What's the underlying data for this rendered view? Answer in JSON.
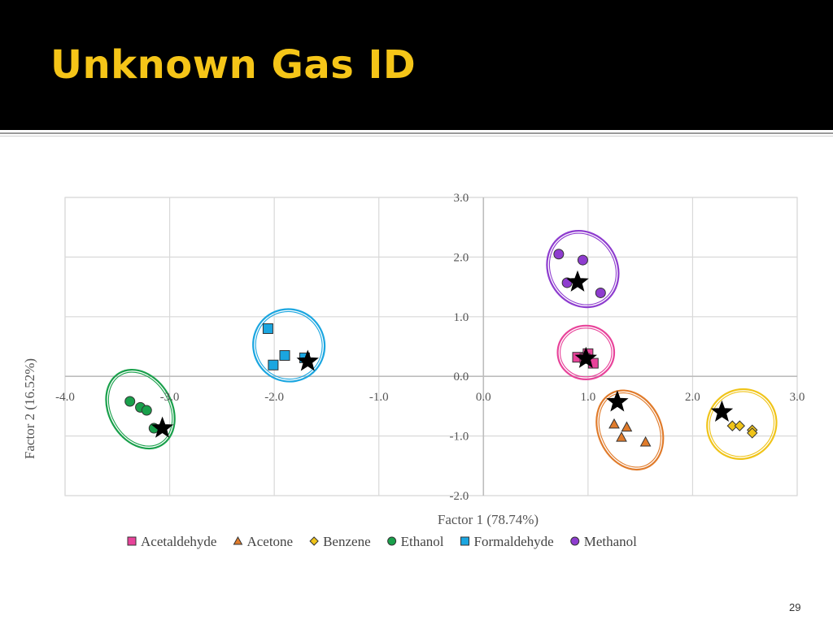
{
  "slide": {
    "title": "Unknown Gas ID",
    "page_number": "29"
  },
  "colors": {
    "header_bg": "#000000",
    "title": "#f5c518",
    "grid": "#d9d9d9"
  },
  "chart_data": {
    "type": "scatter",
    "title": "",
    "xlabel": "Factor 1 (78.74%)",
    "ylabel": "Factor 2 (16.52%)",
    "xlim": [
      -4.0,
      3.0
    ],
    "ylim": [
      -2.0,
      3.0
    ],
    "xticks": [
      -4.0,
      -3.0,
      -2.0,
      -1.0,
      0.0,
      1.0,
      2.0,
      3.0
    ],
    "yticks": [
      -2.0,
      -1.0,
      0.0,
      1.0,
      2.0,
      3.0
    ],
    "xtick_labels": [
      "-4.0",
      "-3.0",
      "-2.0",
      "-1.0",
      "0.0",
      "1.0",
      "2.0",
      "3.0"
    ],
    "ytick_labels": [
      "-2.0",
      "-1.0",
      "0.0",
      "1.0",
      "2.0",
      "3.0"
    ],
    "grid": true,
    "legend_position": "bottom",
    "series": [
      {
        "name": "Acetaldehyde",
        "marker": "square",
        "color": "#e8439a",
        "x": [
          0.9,
          1.0,
          1.05,
          0.97
        ],
        "y": [
          0.32,
          0.38,
          0.22,
          0.3
        ]
      },
      {
        "name": "Acetone",
        "marker": "triangle",
        "color": "#e07b2b",
        "x": [
          1.25,
          1.37,
          1.32,
          1.55
        ],
        "y": [
          -0.8,
          -0.85,
          -1.02,
          -1.1
        ]
      },
      {
        "name": "Benzene",
        "marker": "diamond",
        "color": "#f0c419",
        "x": [
          2.38,
          2.45,
          2.57,
          2.57
        ],
        "y": [
          -0.83,
          -0.83,
          -0.9,
          -0.95
        ]
      },
      {
        "name": "Ethanol",
        "marker": "circle",
        "color": "#19a04b",
        "x": [
          -3.38,
          -3.28,
          -3.22,
          -3.15
        ],
        "y": [
          -0.42,
          -0.52,
          -0.57,
          -0.87
        ]
      },
      {
        "name": "Formaldehyde",
        "marker": "square",
        "color": "#1ba6e0",
        "x": [
          -2.06,
          -1.9,
          -2.01,
          -1.71
        ],
        "y": [
          0.8,
          0.35,
          0.19,
          0.31
        ]
      },
      {
        "name": "Methanol",
        "marker": "circle",
        "color": "#8e3ccf",
        "x": [
          0.72,
          0.95,
          0.8,
          1.12
        ],
        "y": [
          2.05,
          1.95,
          1.57,
          1.4
        ]
      }
    ],
    "unknowns": {
      "marker": "star",
      "color": "#000000",
      "x": [
        -3.07,
        -1.68,
        0.9,
        0.98,
        1.28,
        2.28
      ],
      "y": [
        -0.87,
        0.25,
        1.58,
        0.3,
        -0.43,
        -0.6
      ]
    },
    "cluster_ellipses": [
      {
        "series": "Ethanol",
        "cx": -3.28,
        "cy": -0.55,
        "rx": 0.3,
        "ry": 0.7,
        "rotate": -30,
        "color": "#19a04b"
      },
      {
        "series": "Formaldehyde",
        "cx": -1.86,
        "cy": 0.52,
        "rx": 0.34,
        "ry": 0.61,
        "rotate": -28,
        "color": "#1ba6e0"
      },
      {
        "series": "Methanol",
        "cx": 0.95,
        "cy": 1.8,
        "rx": 0.33,
        "ry": 0.66,
        "rotate": -30,
        "color": "#8e3ccf"
      },
      {
        "series": "Acetaldehyde",
        "cx": 0.98,
        "cy": 0.4,
        "rx": 0.27,
        "ry": 0.45,
        "rotate": 0,
        "color": "#e8439a"
      },
      {
        "series": "Acetone",
        "cx": 1.4,
        "cy": -0.9,
        "rx": 0.3,
        "ry": 0.69,
        "rotate": -25,
        "color": "#e07b2b"
      },
      {
        "series": "Benzene",
        "cx": 2.47,
        "cy": -0.8,
        "rx": 0.34,
        "ry": 0.57,
        "rotate": -50,
        "color": "#f0c419"
      }
    ]
  }
}
